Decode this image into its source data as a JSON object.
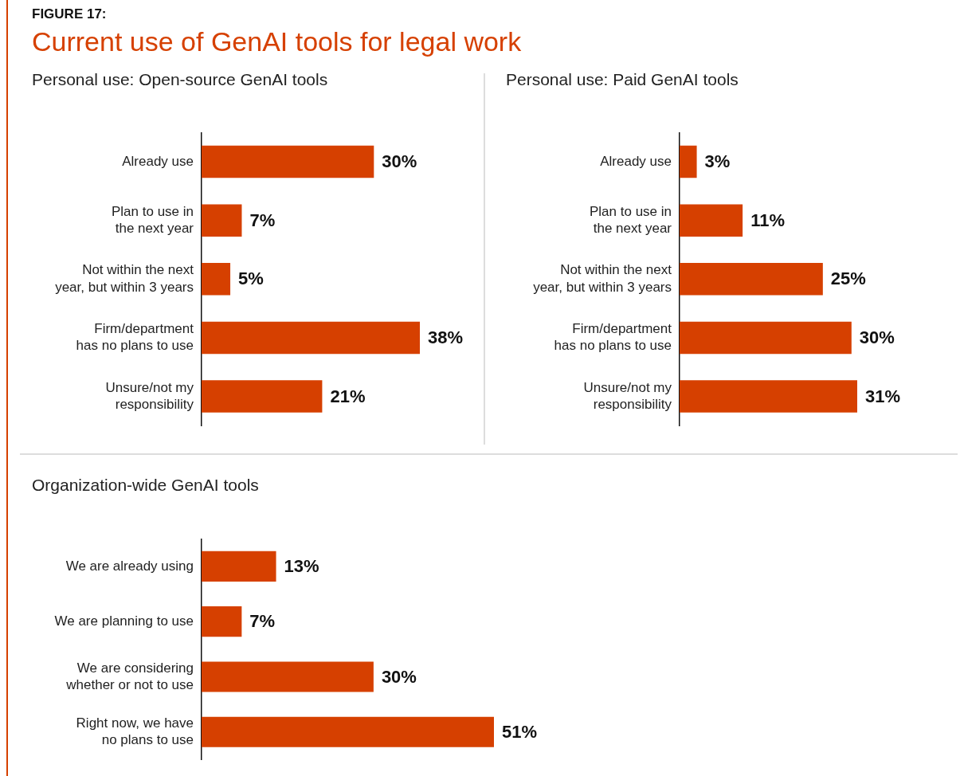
{
  "chart_data": [
    {
      "type": "bar",
      "orientation": "horizontal",
      "title": "Personal use: Open-source GenAI tools",
      "annotations": [
        "FIGURE 17:",
        "Current use of GenAI tools for legal work"
      ],
      "categories": [
        "Already use",
        "Plan to use in the next year",
        "Not within the next year, but within 3 years",
        "Firm/department has no plans to use",
        "Unsure/not my responsibility"
      ],
      "values": [
        30,
        7,
        5,
        38,
        21
      ],
      "value_labels": [
        "30%",
        "7%",
        "5%",
        "38%",
        "21%"
      ],
      "color": "#d64000",
      "tick_labels": "y"
    },
    {
      "type": "bar",
      "orientation": "horizontal",
      "title": "Personal use: Paid GenAI tools",
      "categories": [
        "Already use",
        "Plan to use in the next year",
        "Not within the next year, but within 3 years",
        "Firm/department has no plans to use",
        "Unsure/not my responsibility"
      ],
      "values": [
        3,
        11,
        25,
        30,
        31
      ],
      "value_labels": [
        "3%",
        "11%",
        "25%",
        "30%",
        "31%"
      ],
      "color": "#d64000",
      "tick_labels": "y"
    },
    {
      "type": "bar",
      "orientation": "horizontal",
      "title": "Organization-wide GenAI tools",
      "categories": [
        "We are already using",
        "We are planning to use",
        "We are considering whether or not to use",
        "Right now, we have no plans to use"
      ],
      "values": [
        13,
        7,
        30,
        51
      ],
      "value_labels": [
        "13%",
        "7%",
        "30%",
        "51%"
      ],
      "color": "#d64000",
      "tick_labels": "y"
    }
  ]
}
